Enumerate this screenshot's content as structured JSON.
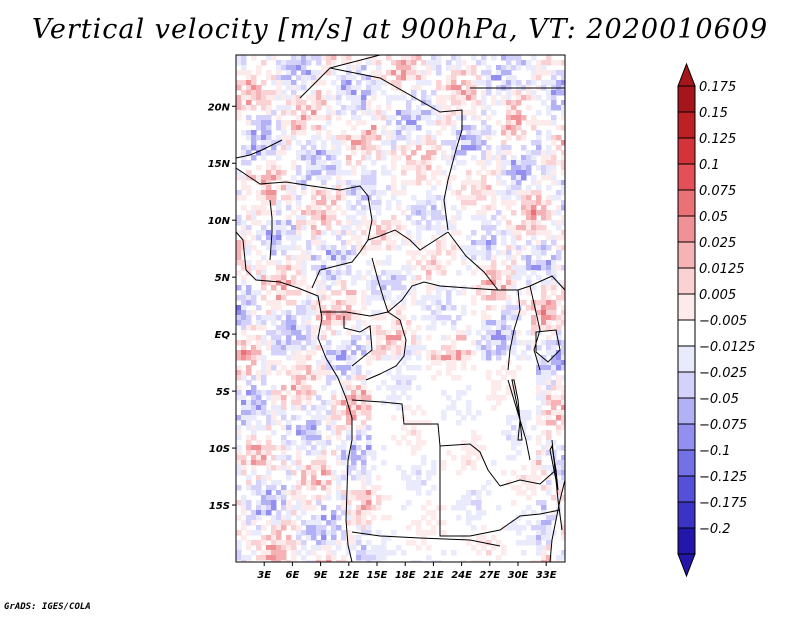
{
  "title": "Vertical velocity [m/s] at 900hPa, VT: 2020010609",
  "footer": "GrADS: IGES/COLA",
  "map": {
    "variable": "Vertical velocity",
    "units": "m/s",
    "level": "900hPa",
    "valid_time": "2020010609",
    "lat_range": [
      -20,
      24.5
    ],
    "lon_range": [
      0,
      35
    ],
    "lat_ticks": [
      {
        "value": 20,
        "label": "20N"
      },
      {
        "value": 15,
        "label": "15N"
      },
      {
        "value": 10,
        "label": "10N"
      },
      {
        "value": 5,
        "label": "5N"
      },
      {
        "value": 0,
        "label": "EQ"
      },
      {
        "value": -5,
        "label": "5S"
      },
      {
        "value": -10,
        "label": "10S"
      },
      {
        "value": -15,
        "label": "15S"
      }
    ],
    "lon_ticks": [
      {
        "value": 3,
        "label": "3E"
      },
      {
        "value": 6,
        "label": "6E"
      },
      {
        "value": 9,
        "label": "9E"
      },
      {
        "value": 12,
        "label": "12E"
      },
      {
        "value": 15,
        "label": "15E"
      },
      {
        "value": 18,
        "label": "18E"
      },
      {
        "value": 21,
        "label": "21E"
      },
      {
        "value": 24,
        "label": "24E"
      },
      {
        "value": 27,
        "label": "27E"
      },
      {
        "value": 30,
        "label": "30E"
      },
      {
        "value": 33,
        "label": "33E"
      }
    ]
  },
  "colorbar": {
    "levels": [
      {
        "label": "0.175",
        "color": "#a4161b"
      },
      {
        "label": "0.15",
        "color": "#bd2126"
      },
      {
        "label": "0.125",
        "color": "#d3343a"
      },
      {
        "label": "0.1",
        "color": "#e25157"
      },
      {
        "label": "0.075",
        "color": "#ea7277"
      },
      {
        "label": "0.05",
        "color": "#f09196"
      },
      {
        "label": "0.025",
        "color": "#f6b3b6"
      },
      {
        "label": "0.0125",
        "color": "#fad2d4"
      },
      {
        "label": "0.005",
        "color": "#fdeaea"
      },
      {
        "label": "−0.005",
        "color": "#ffffff"
      },
      {
        "label": "−0.0125",
        "color": "#eaeafd"
      },
      {
        "label": "−0.025",
        "color": "#d4d2fa"
      },
      {
        "label": "−0.05",
        "color": "#b3b1f5"
      },
      {
        "label": "−0.075",
        "color": "#928ff0"
      },
      {
        "label": "−0.1",
        "color": "#7470e6"
      },
      {
        "label": "−0.125",
        "color": "#5550d8"
      },
      {
        "label": "−0.175",
        "color": "#3a33c4"
      },
      {
        "label": "−0.2",
        "color": "#2416a8"
      }
    ],
    "top_arrow_color": "#a4161b",
    "bottom_arrow_color": "#2416a8"
  }
}
